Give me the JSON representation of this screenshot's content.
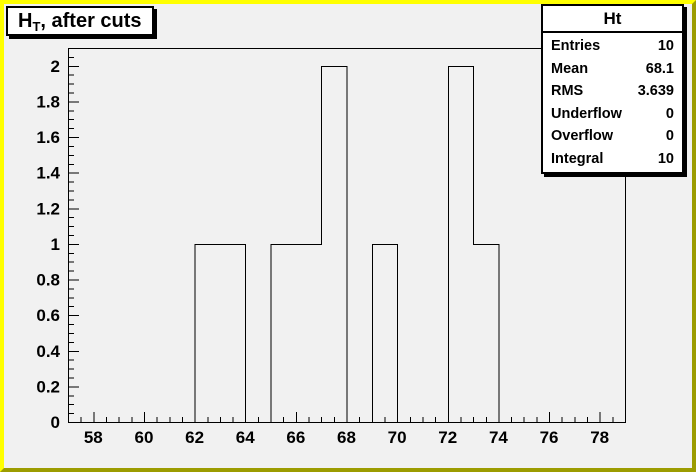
{
  "title": {
    "main": "H",
    "sub": "T",
    "rest": ", after cuts"
  },
  "stats": {
    "header": "Ht",
    "rows": [
      {
        "label": "Entries",
        "value": "10"
      },
      {
        "label": "Mean",
        "value": "68.1"
      },
      {
        "label": "RMS",
        "value": "3.639"
      },
      {
        "label": "Underflow",
        "value": "0"
      },
      {
        "label": "Overflow",
        "value": "0"
      },
      {
        "label": "Integral",
        "value": "10"
      }
    ]
  },
  "colors": {
    "canvas_border_light": "#ffff00",
    "canvas_border_dark": "#9c9c00",
    "canvas_background": "#f1f1f1",
    "line": "#000000",
    "pave_background": "#ffffff"
  },
  "chart_data": {
    "type": "bar",
    "subtype": "histogram-step",
    "title": "H_T, after cuts",
    "stats_name": "Ht",
    "entries": 10,
    "mean": 68.1,
    "rms": 3.639,
    "underflow": 0,
    "overflow": 0,
    "integral": 10,
    "x_range": [
      57,
      79
    ],
    "y_range": [
      0,
      2.1
    ],
    "bin_width": 1,
    "bins": [
      {
        "low": 62,
        "high": 63,
        "count": 1
      },
      {
        "low": 63,
        "high": 64,
        "count": 1
      },
      {
        "low": 65,
        "high": 66,
        "count": 1
      },
      {
        "low": 66,
        "high": 67,
        "count": 1
      },
      {
        "low": 67,
        "high": 68,
        "count": 2
      },
      {
        "low": 69,
        "high": 70,
        "count": 1
      },
      {
        "low": 72,
        "high": 73,
        "count": 2
      },
      {
        "low": 73,
        "high": 74,
        "count": 1
      }
    ],
    "x_major_ticks": [
      58,
      60,
      62,
      64,
      66,
      68,
      70,
      72,
      74,
      76,
      78
    ],
    "x_tick_labels": [
      "58",
      "60",
      "62",
      "64",
      "66",
      "68",
      "70",
      "72",
      "74",
      "76",
      "78"
    ],
    "x_minor_step": 0.5,
    "y_major_ticks": [
      0,
      0.2,
      0.4,
      0.6,
      0.8,
      1,
      1.2,
      1.4,
      1.6,
      1.8,
      2
    ],
    "y_tick_labels": [
      "0",
      "0.2",
      "0.4",
      "0.6",
      "0.8",
      "1",
      "1.2",
      "1.4",
      "1.6",
      "1.8",
      "2"
    ],
    "y_minor_step": 0.05,
    "grid": false,
    "legend": false
  }
}
